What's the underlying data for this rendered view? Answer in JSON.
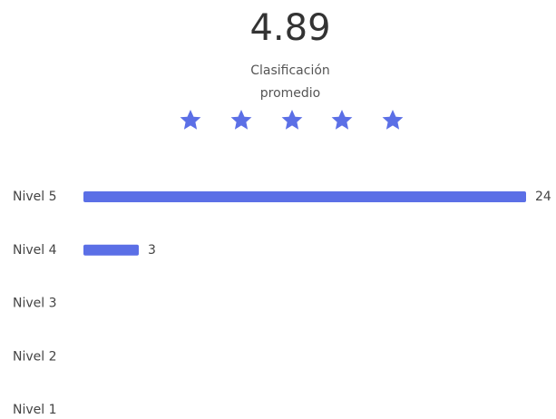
{
  "summary": {
    "average": 4.89,
    "average_label": "Clasificación promedio"
  },
  "chart_data": {
    "type": "bar",
    "orientation": "horizontal",
    "categories": [
      "Nivel 5",
      "Nivel 4",
      "Nivel 3",
      "Nivel 2",
      "Nivel 1"
    ],
    "values": [
      24,
      3,
      0,
      0,
      0
    ],
    "color": "#5b6fe6",
    "xlim": [
      0,
      24
    ]
  }
}
